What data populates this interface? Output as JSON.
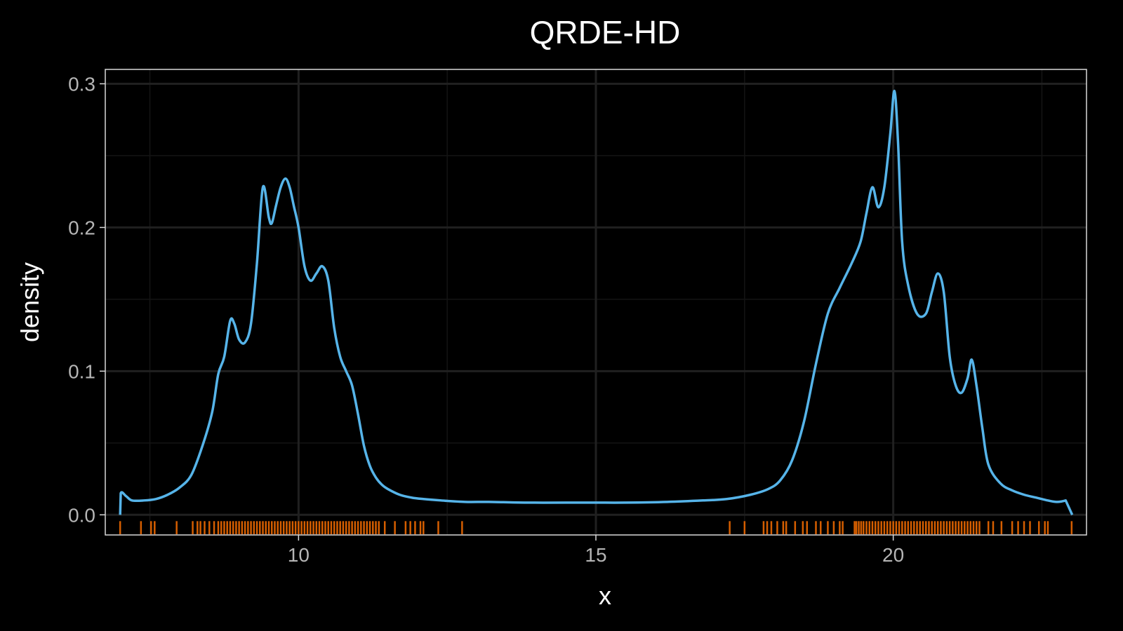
{
  "chart_data": {
    "type": "line",
    "title": "QRDE-HD",
    "xlabel": "x",
    "ylabel": "density",
    "xlim": [
      6.75,
      23.25
    ],
    "ylim": [
      -0.014,
      0.31
    ],
    "x_ticks": [
      10,
      15,
      20
    ],
    "x_tick_labels": [
      "10",
      "15",
      "20"
    ],
    "y_ticks": [
      0.0,
      0.1,
      0.2,
      0.3
    ],
    "y_tick_labels": [
      "0.0",
      "0.1",
      "0.2",
      "0.3"
    ],
    "grid": true,
    "colors": {
      "background": "#000000",
      "panel_border": "#d9d9d9",
      "grid_major": "#202020",
      "grid_minor": "#141414",
      "line": "#56b4e9",
      "rug": "#d55e00"
    },
    "series": [
      {
        "x": [
          7.0,
          7.01,
          7.1,
          7.2,
          7.4,
          7.6,
          7.8,
          8.0,
          8.2,
          8.4,
          8.55,
          8.65,
          8.75,
          8.85,
          8.92,
          9.0,
          9.1,
          9.2,
          9.3,
          9.4,
          9.5,
          9.55,
          9.62,
          9.7,
          9.78,
          9.85,
          9.92,
          10.0,
          10.1,
          10.2,
          10.3,
          10.4,
          10.5,
          10.6,
          10.7,
          10.8,
          10.9,
          11.0,
          11.1,
          11.2,
          11.3,
          11.4,
          11.5,
          11.7,
          11.9,
          12.1,
          12.4,
          12.8,
          13.2,
          13.8,
          14.5,
          15.0,
          15.5,
          16.2,
          16.8,
          17.2,
          17.6,
          17.9,
          18.1,
          18.3,
          18.5,
          18.7,
          18.9,
          19.1,
          19.3,
          19.45,
          19.55,
          19.65,
          19.75,
          19.85,
          19.95,
          20.02,
          20.08,
          20.15,
          20.25,
          20.4,
          20.55,
          20.65,
          20.75,
          20.85,
          20.95,
          21.05,
          21.15,
          21.25,
          21.32,
          21.4,
          21.5,
          21.6,
          21.8,
          22.0,
          22.2,
          22.4,
          22.6,
          22.75,
          22.9,
          23.0,
          23.01
        ],
        "y": [
          0.0,
          0.015,
          0.013,
          0.01,
          0.01,
          0.011,
          0.014,
          0.019,
          0.028,
          0.05,
          0.072,
          0.098,
          0.11,
          0.135,
          0.133,
          0.122,
          0.12,
          0.133,
          0.175,
          0.228,
          0.207,
          0.203,
          0.215,
          0.228,
          0.234,
          0.228,
          0.215,
          0.2,
          0.173,
          0.163,
          0.168,
          0.173,
          0.163,
          0.13,
          0.11,
          0.1,
          0.09,
          0.07,
          0.048,
          0.034,
          0.026,
          0.021,
          0.018,
          0.014,
          0.012,
          0.011,
          0.01,
          0.009,
          0.009,
          0.0085,
          0.0085,
          0.0085,
          0.0085,
          0.009,
          0.01,
          0.011,
          0.014,
          0.018,
          0.024,
          0.038,
          0.065,
          0.105,
          0.14,
          0.158,
          0.175,
          0.19,
          0.21,
          0.228,
          0.214,
          0.228,
          0.265,
          0.295,
          0.26,
          0.19,
          0.16,
          0.14,
          0.14,
          0.155,
          0.168,
          0.155,
          0.11,
          0.09,
          0.085,
          0.095,
          0.108,
          0.09,
          0.06,
          0.035,
          0.022,
          0.017,
          0.014,
          0.012,
          0.01,
          0.009,
          0.01,
          0.012,
          0.0
        ]
      }
    ],
    "rug": [
      7.0,
      7.35,
      7.52,
      7.58,
      7.95,
      8.22,
      8.3,
      8.35,
      8.42,
      8.5,
      8.58,
      8.65,
      8.7,
      8.75,
      8.8,
      8.85,
      8.9,
      8.95,
      9.0,
      9.05,
      9.1,
      9.15,
      9.2,
      9.25,
      9.3,
      9.35,
      9.4,
      9.45,
      9.5,
      9.55,
      9.6,
      9.65,
      9.7,
      9.75,
      9.8,
      9.85,
      9.9,
      9.95,
      10.0,
      10.05,
      10.1,
      10.15,
      10.2,
      10.25,
      10.3,
      10.35,
      10.4,
      10.45,
      10.5,
      10.55,
      10.6,
      10.65,
      10.7,
      10.75,
      10.8,
      10.85,
      10.9,
      10.95,
      11.0,
      11.05,
      11.1,
      11.15,
      11.2,
      11.25,
      11.3,
      11.35,
      11.45,
      11.62,
      11.8,
      11.88,
      11.96,
      12.05,
      12.1,
      12.35,
      12.75,
      17.25,
      17.5,
      17.82,
      17.88,
      17.95,
      18.05,
      18.15,
      18.2,
      18.35,
      18.48,
      18.55,
      18.7,
      18.78,
      18.9,
      19.0,
      19.1,
      19.15,
      19.35,
      19.38,
      19.42,
      19.46,
      19.5,
      19.55,
      19.6,
      19.65,
      19.7,
      19.75,
      19.8,
      19.85,
      19.9,
      19.95,
      20.0,
      20.05,
      20.1,
      20.15,
      20.2,
      20.25,
      20.3,
      20.35,
      20.4,
      20.45,
      20.5,
      20.55,
      20.6,
      20.65,
      20.7,
      20.75,
      20.8,
      20.85,
      20.9,
      20.95,
      21.0,
      21.05,
      21.1,
      21.15,
      21.2,
      21.25,
      21.3,
      21.35,
      21.4,
      21.45,
      21.6,
      21.68,
      21.82,
      22.0,
      22.1,
      22.2,
      22.3,
      22.45,
      22.55,
      22.6,
      23.0
    ]
  }
}
